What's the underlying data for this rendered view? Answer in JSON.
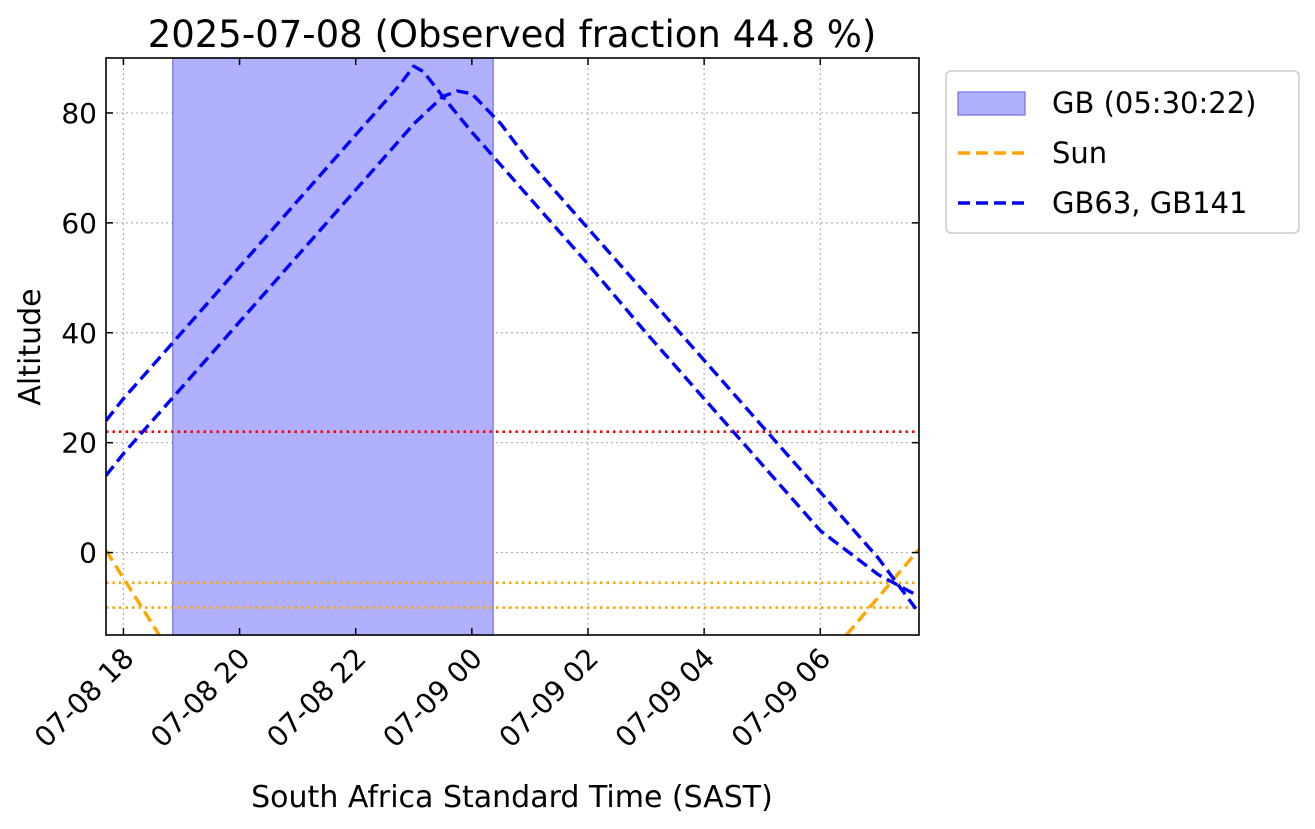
{
  "chart_data": {
    "type": "line",
    "title": "2025-07-08 (Observed fraction 44.8 %)",
    "xlabel": "South Africa Standard Time (SAST)",
    "ylabel": "Altitude",
    "xlim": [
      "2025-07-08 17:42",
      "2025-07-09 07:42"
    ],
    "ylim": [
      -15,
      90
    ],
    "grid": true,
    "legend_position": "outside-right",
    "x_ticks": [
      "07-08 18",
      "07-08 20",
      "07-08 22",
      "07-09 00",
      "07-09 02",
      "07-09 04",
      "07-09 06"
    ],
    "y_ticks": [
      0,
      20,
      40,
      60,
      80
    ],
    "observed_window": {
      "label": "GB (05:30:22)",
      "start": "2025-07-08 18:51",
      "end": "2025-07-09 00:22",
      "color": "#b0b0fe"
    },
    "series": [
      {
        "name": "Sun",
        "color": "#ffa500",
        "style": "dashed",
        "segments": [
          {
            "x": [
              "2025-07-08 17:42",
              "2025-07-08 18:37"
            ],
            "y": [
              0.4,
              -15
            ]
          },
          {
            "x": [
              "2025-07-09 06:27",
              "2025-07-09 07:42"
            ],
            "y": [
              -15,
              0.6
            ]
          }
        ]
      },
      {
        "name": "GB63, GB141",
        "color": "#0000ff",
        "style": "dashed",
        "members": [
          {
            "id": "GB63",
            "x": [
              "2025-07-08 17:42",
              "2025-07-08 18:00",
              "2025-07-08 19:00",
              "2025-07-08 20:00",
              "2025-07-08 21:00",
              "2025-07-08 22:00",
              "2025-07-08 22:45",
              "2025-07-08 23:00",
              "2025-07-08 23:10",
              "2025-07-08 23:30",
              "2025-07-09 00:00",
              "2025-07-09 01:00",
              "2025-07-09 02:00",
              "2025-07-09 03:00",
              "2025-07-09 04:00",
              "2025-07-09 05:00",
              "2025-07-09 06:00",
              "2025-07-09 07:00",
              "2025-07-09 07:42"
            ],
            "y": [
              24,
              28,
              40,
              52,
              64,
              76,
              85,
              88.5,
              87.5,
              83,
              76.5,
              64.5,
              52.5,
              40,
              28,
              16,
              4,
              -4,
              -8
            ]
          },
          {
            "id": "GB141",
            "x": [
              "2025-07-08 17:42",
              "2025-07-08 18:00",
              "2025-07-08 19:00",
              "2025-07-08 20:00",
              "2025-07-08 21:00",
              "2025-07-08 22:00",
              "2025-07-08 23:00",
              "2025-07-08 23:30",
              "2025-07-08 23:45",
              "2025-07-09 00:00",
              "2025-07-09 00:30",
              "2025-07-09 01:00",
              "2025-07-09 02:00",
              "2025-07-09 03:00",
              "2025-07-09 04:00",
              "2025-07-09 05:00",
              "2025-07-09 06:00",
              "2025-07-09 07:00",
              "2025-07-09 07:42"
            ],
            "y": [
              14,
              18,
              30,
              42,
              54,
              66,
              78,
              83,
              84,
              83.5,
              78,
              71,
              59,
              47,
              35,
              23,
              11,
              -1,
              -11
            ]
          }
        ]
      }
    ],
    "reference_lines": [
      {
        "y": 22,
        "color": "#ff0000",
        "style": "dotted"
      },
      {
        "y": -5.5,
        "color": "#ffa500",
        "style": "dotted"
      },
      {
        "y": -10,
        "color": "#ffa500",
        "style": "dotted"
      }
    ],
    "legend": [
      {
        "label": "GB (05:30:22)",
        "kind": "patch",
        "color": "#b0b0fe"
      },
      {
        "label": "Sun",
        "kind": "line",
        "color": "#ffa500"
      },
      {
        "label": "GB63, GB141",
        "kind": "line",
        "color": "#0000ff"
      }
    ]
  }
}
